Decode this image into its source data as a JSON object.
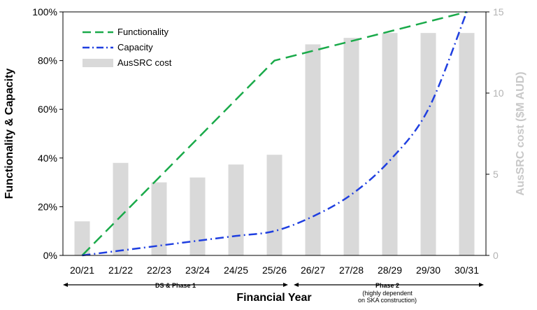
{
  "chart_data": {
    "type": "bar+line",
    "categories": [
      "20/21",
      "21/22",
      "22/23",
      "23/24",
      "24/25",
      "25/26",
      "26/27",
      "27/28",
      "28/29",
      "29/30",
      "30/31"
    ],
    "xlabel": "Financial Year",
    "ylabel_left": "Functionality & Capacity",
    "ylabel_right": "AusSRC cost ($M AUD)",
    "ylim_left": [
      0,
      100
    ],
    "ylim_right": [
      0,
      15
    ],
    "yticks_left": [
      "0%",
      "20%",
      "40%",
      "60%",
      "80%",
      "100%"
    ],
    "yticks_right": [
      "0",
      "5",
      "10",
      "15"
    ],
    "series": [
      {
        "name": "Functionality",
        "kind": "line",
        "style": "dashed",
        "color": "#1aaa4a",
        "axis": "left",
        "values": [
          0,
          null,
          null,
          null,
          null,
          80,
          null,
          null,
          null,
          null,
          100
        ]
      },
      {
        "name": "Capacity",
        "kind": "line",
        "style": "dashdot",
        "color": "#1f3fe0",
        "axis": "left",
        "values": [
          0,
          2,
          4,
          6,
          8,
          10,
          16,
          25,
          39,
          60,
          100
        ]
      },
      {
        "name": "AusSRC cost",
        "kind": "bar",
        "color": "#d9d9d9",
        "axis": "right",
        "values": [
          2.1,
          5.7,
          4.5,
          4.8,
          5.6,
          6.2,
          13.0,
          13.4,
          13.7,
          13.7,
          13.7
        ]
      }
    ],
    "phases": [
      {
        "label": "DS & Phase 1",
        "start": "20/21",
        "end": "25/26"
      },
      {
        "label": "Phase 2",
        "sublabel_line1": "(highly dependent",
        "sublabel_line2": "on SKA construction)",
        "start": "25/26",
        "end": "30/31"
      }
    ],
    "grid": false,
    "legend_position": "top-left"
  }
}
